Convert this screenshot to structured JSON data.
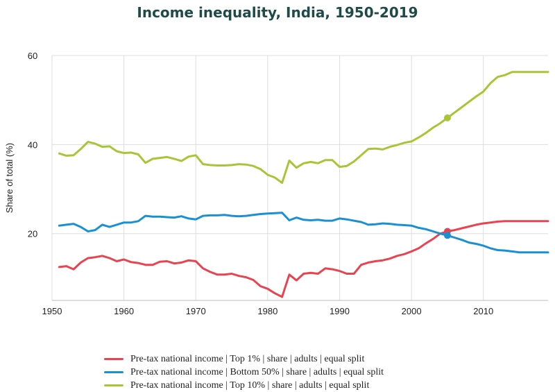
{
  "chart_data": {
    "type": "line",
    "title": "Income inequality, India, 1950-2019",
    "xlabel": "",
    "ylabel": "Share of total (%)",
    "xlim": [
      1950,
      2019
    ],
    "ylim": [
      5,
      60
    ],
    "x_ticks": [
      1950,
      1960,
      1970,
      1980,
      1990,
      2000,
      2010
    ],
    "y_ticks": [
      20,
      40,
      60
    ],
    "grid": true,
    "legend_position": "bottom",
    "series": [
      {
        "name": "Pre-tax national income | Top 1% | share | adults | equal split",
        "color": "#e8434f",
        "x": [
          1951,
          1952,
          1953,
          1954,
          1955,
          1956,
          1957,
          1958,
          1959,
          1960,
          1961,
          1962,
          1963,
          1964,
          1965,
          1966,
          1967,
          1968,
          1969,
          1970,
          1971,
          1972,
          1973,
          1974,
          1975,
          1976,
          1977,
          1978,
          1979,
          1980,
          1981,
          1982,
          1983,
          1984,
          1985,
          1986,
          1987,
          1988,
          1989,
          1990,
          1991,
          1992,
          1993,
          1994,
          1995,
          1996,
          1997,
          1998,
          1999,
          2000,
          2001,
          2002,
          2003,
          2004,
          2005,
          2006,
          2007,
          2008,
          2009,
          2010,
          2011,
          2012,
          2013,
          2014,
          2015,
          2016,
          2017,
          2018,
          2019
        ],
        "values": [
          12.5,
          12.7,
          12.0,
          13.5,
          14.5,
          14.7,
          15.0,
          14.5,
          13.8,
          14.2,
          13.6,
          13.4,
          13.0,
          13.0,
          13.7,
          13.8,
          13.3,
          13.5,
          14.0,
          13.8,
          12.2,
          11.4,
          10.8,
          10.8,
          11.0,
          10.5,
          10.2,
          9.6,
          8.2,
          7.6,
          6.6,
          5.8,
          10.8,
          9.5,
          11.0,
          11.2,
          11.0,
          12.2,
          12.0,
          11.6,
          11.0,
          11.0,
          13.0,
          13.5,
          13.8,
          14.0,
          14.4,
          15.0,
          15.4,
          16.0,
          16.7,
          17.8,
          18.8,
          20.0,
          20.5,
          20.8,
          21.2,
          21.6,
          22.0,
          22.3,
          22.5,
          22.7,
          22.8,
          22.8,
          22.8,
          22.8,
          22.8,
          22.8,
          22.8
        ],
        "highlight": {
          "x": 2005,
          "y": 20.5
        }
      },
      {
        "name": "Pre-tax national income | Bottom 50% | share | adults | equal split",
        "color": "#1a90d4",
        "x": [
          1951,
          1952,
          1953,
          1954,
          1955,
          1956,
          1957,
          1958,
          1959,
          1960,
          1961,
          1962,
          1963,
          1964,
          1965,
          1966,
          1967,
          1968,
          1969,
          1970,
          1971,
          1972,
          1973,
          1974,
          1975,
          1976,
          1977,
          1978,
          1979,
          1980,
          1981,
          1982,
          1983,
          1984,
          1985,
          1986,
          1987,
          1988,
          1989,
          1990,
          1991,
          1992,
          1993,
          1994,
          1995,
          1996,
          1997,
          1998,
          1999,
          2000,
          2001,
          2002,
          2003,
          2004,
          2005,
          2006,
          2007,
          2008,
          2009,
          2010,
          2011,
          2012,
          2013,
          2014,
          2015,
          2016,
          2017,
          2018,
          2019
        ],
        "values": [
          21.8,
          22.0,
          22.2,
          21.5,
          20.5,
          20.8,
          22.0,
          21.5,
          22.0,
          22.5,
          22.5,
          22.8,
          24.0,
          23.8,
          23.8,
          23.7,
          23.6,
          23.9,
          23.4,
          23.2,
          24.0,
          24.1,
          24.1,
          24.2,
          24.0,
          23.9,
          24.0,
          24.2,
          24.4,
          24.5,
          24.6,
          24.7,
          23.0,
          23.6,
          23.1,
          23.0,
          23.1,
          22.9,
          22.9,
          23.4,
          23.2,
          22.9,
          22.6,
          22.0,
          22.1,
          22.3,
          22.2,
          22.0,
          21.9,
          21.8,
          21.3,
          21.0,
          20.5,
          20.0,
          19.6,
          19.1,
          18.6,
          18.0,
          17.7,
          17.3,
          16.7,
          16.3,
          16.2,
          16.0,
          15.8,
          15.8,
          15.8,
          15.8,
          15.8
        ],
        "highlight": {
          "x": 2005,
          "y": 19.6
        }
      },
      {
        "name": "Pre-tax national income | Top 10% | share | adults | equal split",
        "color": "#a8c536",
        "x": [
          1951,
          1952,
          1953,
          1954,
          1955,
          1956,
          1957,
          1958,
          1959,
          1960,
          1961,
          1962,
          1963,
          1964,
          1965,
          1966,
          1967,
          1968,
          1969,
          1970,
          1971,
          1972,
          1973,
          1974,
          1975,
          1976,
          1977,
          1978,
          1979,
          1980,
          1981,
          1982,
          1983,
          1984,
          1985,
          1986,
          1987,
          1988,
          1989,
          1990,
          1991,
          1992,
          1993,
          1994,
          1995,
          1996,
          1997,
          1998,
          1999,
          2000,
          2001,
          2002,
          2003,
          2004,
          2005,
          2006,
          2007,
          2008,
          2009,
          2010,
          2011,
          2012,
          2013,
          2014,
          2015,
          2016,
          2017,
          2018,
          2019
        ],
        "values": [
          38.0,
          37.5,
          37.6,
          39.0,
          40.6,
          40.2,
          39.5,
          39.6,
          38.5,
          38.1,
          38.2,
          37.8,
          35.9,
          36.8,
          37.0,
          37.2,
          36.8,
          36.3,
          37.3,
          37.6,
          35.6,
          35.4,
          35.3,
          35.3,
          35.4,
          35.6,
          35.5,
          35.2,
          34.5,
          33.2,
          32.6,
          31.4,
          36.4,
          34.8,
          35.8,
          36.1,
          35.8,
          36.5,
          36.5,
          35.0,
          35.2,
          36.2,
          37.6,
          39.0,
          39.1,
          38.9,
          39.5,
          39.9,
          40.4,
          40.7,
          41.6,
          42.6,
          43.8,
          44.8,
          46.0,
          47.2,
          48.4,
          49.6,
          50.8,
          51.9,
          53.8,
          55.2,
          55.6,
          56.3,
          56.3,
          56.3,
          56.3,
          56.3,
          56.3
        ],
        "highlight": {
          "x": 2005,
          "y": 46.0
        }
      }
    ]
  }
}
